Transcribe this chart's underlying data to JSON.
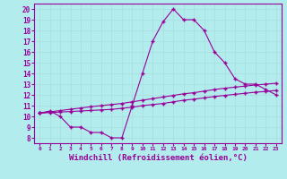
{
  "line1_x": [
    0,
    1,
    2,
    3,
    4,
    5,
    6,
    7,
    8,
    9,
    10,
    11,
    12,
    13,
    14,
    15,
    16,
    17,
    18,
    19,
    20,
    21,
    22,
    23
  ],
  "line1_y": [
    10.3,
    10.5,
    10.0,
    9.0,
    9.0,
    8.5,
    8.5,
    8.0,
    8.0,
    11.0,
    14.0,
    17.0,
    18.8,
    20.0,
    19.0,
    19.0,
    18.0,
    16.0,
    15.0,
    13.5,
    13.0,
    13.0,
    12.5,
    12.0
  ],
  "line2_x": [
    0,
    1,
    2,
    3,
    4,
    5,
    6,
    7,
    8,
    9,
    10,
    11,
    12,
    13,
    14,
    15,
    16,
    17,
    18,
    19,
    20,
    21,
    22,
    23
  ],
  "line2_y": [
    10.3,
    10.42,
    10.54,
    10.66,
    10.78,
    10.9,
    11.0,
    11.1,
    11.2,
    11.35,
    11.5,
    11.65,
    11.8,
    11.95,
    12.1,
    12.2,
    12.35,
    12.5,
    12.62,
    12.72,
    12.82,
    12.92,
    13.0,
    13.08
  ],
  "line3_x": [
    0,
    1,
    2,
    3,
    4,
    5,
    6,
    7,
    8,
    9,
    10,
    11,
    12,
    13,
    14,
    15,
    16,
    17,
    18,
    19,
    20,
    21,
    22,
    23
  ],
  "line3_y": [
    10.3,
    10.35,
    10.4,
    10.45,
    10.5,
    10.55,
    10.6,
    10.65,
    10.75,
    10.85,
    11.0,
    11.1,
    11.2,
    11.35,
    11.5,
    11.6,
    11.72,
    11.85,
    11.95,
    12.05,
    12.15,
    12.25,
    12.32,
    12.42
  ],
  "line_color": "#990099",
  "bg_color": "#b2ecec",
  "xlabel": "Windchill (Refroidissement éolien,°C)",
  "xlabel_fontsize": 6.5,
  "xticks": [
    0,
    1,
    2,
    3,
    4,
    5,
    6,
    7,
    8,
    9,
    10,
    11,
    12,
    13,
    14,
    15,
    16,
    17,
    18,
    19,
    20,
    21,
    22,
    23
  ],
  "yticks": [
    8,
    9,
    10,
    11,
    12,
    13,
    14,
    15,
    16,
    17,
    18,
    19,
    20
  ],
  "ylim": [
    7.5,
    20.5
  ],
  "xlim": [
    -0.5,
    23.5
  ],
  "grid_color": "#aadddd",
  "marker": "+"
}
